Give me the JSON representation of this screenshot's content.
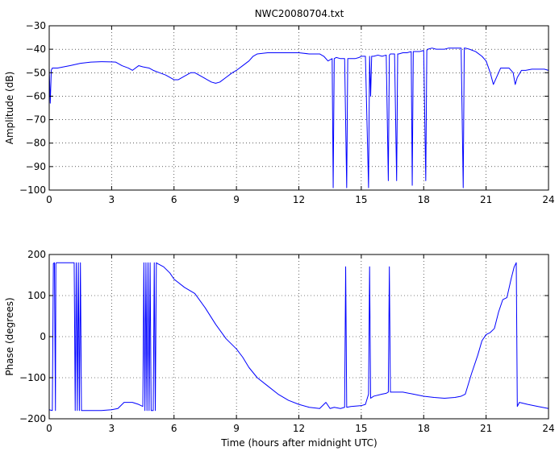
{
  "chart_data": [
    {
      "type": "line",
      "title": "NWC20080704.txt",
      "xlabel": "",
      "ylabel": "Amplitude (dB)",
      "xlim": [
        0,
        24
      ],
      "ylim": [
        -100,
        -30
      ],
      "xticks": [
        0,
        3,
        6,
        9,
        12,
        15,
        18,
        21,
        24
      ],
      "yticks": [
        -100,
        -90,
        -80,
        -70,
        -60,
        -50,
        -40,
        -30
      ],
      "grid": true,
      "series": [
        {
          "color": "#0000ff",
          "x": [
            0,
            0.05,
            0.1,
            0.15,
            0.4,
            1,
            1.5,
            2,
            2.5,
            3,
            3.2,
            3.5,
            3.8,
            4,
            4.3,
            4.5,
            4.8,
            5,
            5.3,
            5.6,
            5.8,
            6,
            6.2,
            6.4,
            6.6,
            6.8,
            7,
            7.2,
            7.4,
            7.6,
            7.8,
            8,
            8.2,
            8.5,
            8.8,
            9,
            9.3,
            9.6,
            9.8,
            10,
            10.5,
            11,
            11.5,
            12,
            12.5,
            13,
            13.2,
            13.4,
            13.6,
            13.65,
            13.7,
            13.8,
            14,
            14.2,
            14.3,
            14.35,
            14.4,
            14.5,
            14.7,
            14.9,
            15,
            15.2,
            15.35,
            15.4,
            15.45,
            15.5,
            15.6,
            15.8,
            16,
            16.2,
            16.3,
            16.35,
            16.4,
            16.6,
            16.7,
            16.75,
            16.8,
            17,
            17.2,
            17.4,
            17.45,
            17.5,
            17.8,
            18,
            18.1,
            18.15,
            18.2,
            18.4,
            18.6,
            18.8,
            19,
            19.2,
            19.5,
            19.8,
            19.9,
            19.95,
            20,
            20.2,
            20.5,
            20.8,
            21,
            21.2,
            21.35,
            21.5,
            21.7,
            21.9,
            22.1,
            22.3,
            22.4,
            22.5,
            22.7,
            22.9,
            23.2,
            23.5,
            23.8,
            24
          ],
          "y": [
            -48,
            -63,
            -49,
            -48,
            -48,
            -47,
            -46,
            -45.5,
            -45.3,
            -45.4,
            -45.5,
            -47,
            -48,
            -49,
            -47,
            -47.5,
            -48,
            -49,
            -50,
            -51,
            -52,
            -53,
            -53,
            -52,
            -51,
            -50,
            -50,
            -51,
            -52,
            -53,
            -54,
            -54.5,
            -54,
            -52,
            -50,
            -49,
            -47,
            -45,
            -43,
            -42,
            -41.5,
            -41.5,
            -41.5,
            -41.5,
            -42,
            -42,
            -43,
            -45,
            -44,
            -99,
            -44,
            -43.5,
            -44,
            -44,
            -99,
            -44,
            -44,
            -44,
            -44,
            -43.5,
            -43,
            -43,
            -99,
            -43,
            -60,
            -43,
            -43,
            -42.5,
            -43,
            -42.5,
            -96,
            -42.5,
            -42,
            -42,
            -96,
            -42,
            -42,
            -41.5,
            -41.5,
            -41,
            -98,
            -41,
            -41,
            -40.5,
            -96,
            -40.5,
            -40,
            -39.5,
            -40,
            -40,
            -40,
            -39.5,
            -39.5,
            -39.5,
            -99,
            -39.5,
            -39.5,
            -40,
            -41,
            -43,
            -45,
            -50,
            -55,
            -52,
            -48,
            -48,
            -48,
            -50,
            -55,
            -52,
            -49,
            -49,
            -48.5,
            -48.5,
            -48.5,
            -49
          ]
        }
      ]
    },
    {
      "type": "line",
      "title": "",
      "xlabel": "Time (hours after midnight UTC)",
      "ylabel": "Phase (degrees)",
      "xlim": [
        0,
        24
      ],
      "ylim": [
        -200,
        200
      ],
      "xticks": [
        0,
        3,
        6,
        9,
        12,
        15,
        18,
        21,
        24
      ],
      "yticks": [
        -200,
        -100,
        0,
        100,
        200
      ],
      "grid": true,
      "series": [
        {
          "color": "#0000ff",
          "x": [
            0,
            0.15,
            0.2,
            0.25,
            0.3,
            0.32,
            0.35,
            1.2,
            1.25,
            1.3,
            1.35,
            1.4,
            1.45,
            1.5,
            1.55,
            1.6,
            2,
            2.5,
            3,
            3.3,
            3.6,
            4,
            4.3,
            4.5,
            4.55,
            4.6,
            4.65,
            4.7,
            4.75,
            4.8,
            4.85,
            4.9,
            5,
            5.05,
            5.1,
            5.15,
            5.2,
            5.5,
            5.8,
            6,
            6.5,
            7,
            7.5,
            8,
            8.5,
            9,
            9.3,
            9.6,
            10,
            10.5,
            11,
            11.5,
            12,
            12.5,
            13,
            13.3,
            13.5,
            13.7,
            14,
            14.2,
            14.25,
            14.3,
            14.5,
            15,
            15.2,
            15.35,
            15.4,
            15.45,
            15.6,
            16,
            16.2,
            16.3,
            16.35,
            16.4,
            16.6,
            17,
            17.5,
            18,
            18.5,
            19,
            19.5,
            19.8,
            20,
            20.3,
            20.6,
            20.8,
            21,
            21.2,
            21.4,
            21.6,
            21.8,
            22,
            22.2,
            22.35,
            22.45,
            22.5,
            22.55,
            22.6,
            23,
            23.5,
            24
          ],
          "y": [
            -178,
            -180,
            178,
            180,
            -180,
            178,
            180,
            180,
            -180,
            180,
            -180,
            180,
            -180,
            180,
            -180,
            -180,
            -180,
            -180,
            -178,
            -175,
            -160,
            -160,
            -165,
            -170,
            180,
            -180,
            180,
            -180,
            180,
            -180,
            180,
            -180,
            -180,
            180,
            -180,
            180,
            178,
            170,
            155,
            140,
            120,
            105,
            70,
            30,
            -5,
            -30,
            -50,
            -75,
            -100,
            -120,
            -140,
            -155,
            -165,
            -172,
            -175,
            -160,
            -175,
            -172,
            -175,
            -172,
            170,
            -172,
            -170,
            -168,
            -165,
            -140,
            170,
            -150,
            -145,
            -140,
            -138,
            -135,
            170,
            -135,
            -135,
            -135,
            -140,
            -145,
            -148,
            -150,
            -148,
            -145,
            -140,
            -90,
            -45,
            -10,
            5,
            10,
            20,
            60,
            90,
            95,
            140,
            170,
            180,
            -170,
            -165,
            -160,
            -165,
            -170,
            -175
          ]
        }
      ]
    }
  ]
}
